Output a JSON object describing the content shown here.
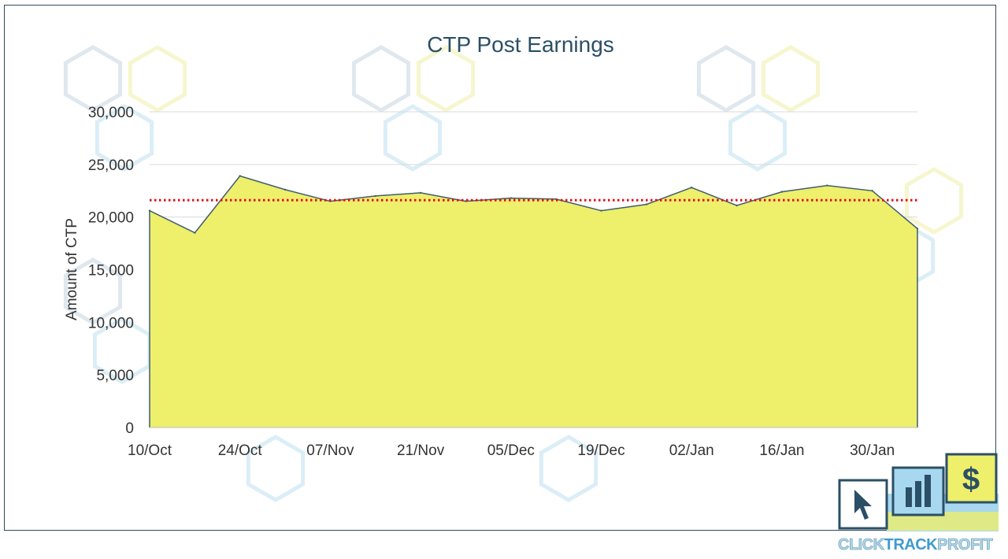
{
  "chart_data": {
    "type": "area",
    "title": "CTP Post Earnings",
    "xlabel": "",
    "ylabel": "Amount of CTP",
    "x_tick_labels": [
      "10/Oct",
      "24/Oct",
      "07/Nov",
      "21/Nov",
      "05/Dec",
      "19/Dec",
      "02/Jan",
      "16/Jan",
      "30/Jan"
    ],
    "y_tick_labels": [
      "0",
      "5,000",
      "10,000",
      "15,000",
      "20,000",
      "25,000",
      "30,000"
    ],
    "ylim": [
      0,
      30000
    ],
    "grid": "horizontal",
    "legend": "none",
    "series": [
      {
        "dates": [
          "10/Oct",
          "17/Oct",
          "24/Oct",
          "31/Oct",
          "07/Nov",
          "14/Nov",
          "21/Nov",
          "28/Nov",
          "05/Dec",
          "12/Dec",
          "19/Dec",
          "26/Dec",
          "02/Jan",
          "09/Jan",
          "16/Jan",
          "23/Jan",
          "30/Jan",
          "06/Feb"
        ],
        "values": [
          20600,
          18500,
          23900,
          22600,
          21500,
          22000,
          22300,
          21500,
          21800,
          21700,
          20600,
          21200,
          22800,
          21100,
          22400,
          23000,
          22500,
          18900
        ]
      }
    ],
    "reference_line": {
      "value": 21600,
      "style": "dotted",
      "color": "#e0111b"
    },
    "colors": {
      "area_fill": "#eeef6b",
      "area_line": "#3e5d6e",
      "grid": "#d9d9d9",
      "title": "#2b4f66"
    }
  },
  "logo": {
    "click": "CLICK",
    "track": "TRACK",
    "profit": "PROFIT",
    "dollar": "$"
  }
}
